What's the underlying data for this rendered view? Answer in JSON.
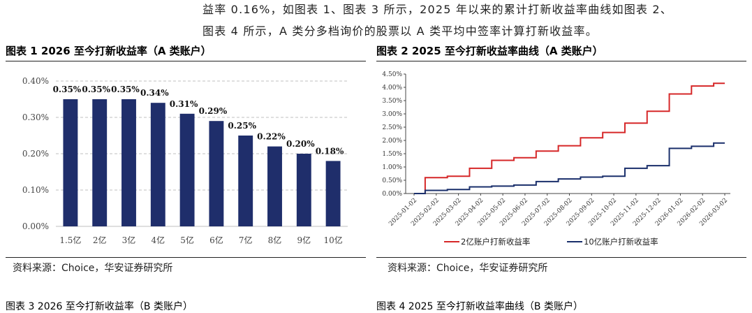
{
  "paragraph": {
    "line1": "益率 0.16%，如图表 1、图表 3 所示，2025 年以来的累计打新收益率曲线如图表 2、",
    "line2": "图表 4 所示，A 类分多档询价的股票以 A 类平均中签率计算打新收益率。"
  },
  "figure1": {
    "caption": "图表 1 2026 至今打新收益率（A 类账户）",
    "source": "资料来源：Choice，华安证券研究所"
  },
  "figure2": {
    "caption": "图表 2 2025 至今打新收益率曲线（A 类账户）",
    "source": "资料来源：Choice，华安证券研究所"
  },
  "bottom_captions": {
    "left": "图表 3 2026 至今打新收益率（B 类账户）",
    "right": "图表 4 2025 至今打新收益率曲线（B 类账户）"
  },
  "colors": {
    "bar": "#1f2e6b",
    "red_series": "#d62728",
    "blue_series": "#1a2f6b",
    "grid": "#bfbfbf"
  },
  "chart_data": [
    {
      "type": "bar",
      "title": "2026 至今打新收益率（A 类账户）",
      "categories": [
        "1.5亿",
        "2亿",
        "3亿",
        "4亿",
        "5亿",
        "6亿",
        "7亿",
        "8亿",
        "9亿",
        "10亿"
      ],
      "values": [
        0.35,
        0.35,
        0.35,
        0.34,
        0.31,
        0.29,
        0.25,
        0.22,
        0.2,
        0.18
      ],
      "data_labels": [
        "0.35%",
        "0.35%",
        "0.35%",
        "0.34%",
        "0.31%",
        "0.29%",
        "0.25%",
        "0.22%",
        "0.20%",
        "0.18%"
      ],
      "y_ticks": [
        "0.00%",
        "0.10%",
        "0.20%",
        "0.30%",
        "0.40%"
      ],
      "ylim": [
        0,
        0.4
      ],
      "xlabel": "",
      "ylabel": "",
      "grid": true
    },
    {
      "type": "line",
      "title": "2025 至今打新收益率曲线（A 类账户）",
      "x_labels": [
        "2025-01-02",
        "2025-02-02",
        "2025-03-02",
        "2025-04-02",
        "2025-05-02",
        "2025-06-02",
        "2025-07-02",
        "2025-08-02",
        "2025-09-02",
        "2025-10-02",
        "2025-11-02",
        "2025-12-02",
        "2026-01-02",
        "2026-02-02",
        "2026-03-02"
      ],
      "y_ticks": [
        "0.00%",
        "0.50%",
        "1.00%",
        "1.50%",
        "2.00%",
        "2.50%",
        "3.00%",
        "3.50%",
        "4.00%",
        "4.50%"
      ],
      "ylim": [
        0,
        4.5
      ],
      "legend_position": "bottom",
      "series": [
        {
          "name": "2亿账户打新收益率",
          "color": "#d62728",
          "values": [
            0.0,
            0.6,
            0.65,
            0.95,
            1.25,
            1.35,
            1.6,
            1.8,
            2.1,
            2.3,
            2.65,
            3.1,
            3.75,
            4.05,
            4.15
          ]
        },
        {
          "name": "10亿账户打新收益率",
          "color": "#1a2f6b",
          "values": [
            0.0,
            0.12,
            0.15,
            0.25,
            0.28,
            0.32,
            0.45,
            0.55,
            0.62,
            0.65,
            0.95,
            1.05,
            1.7,
            1.78,
            1.9
          ]
        }
      ],
      "grid": false
    }
  ]
}
